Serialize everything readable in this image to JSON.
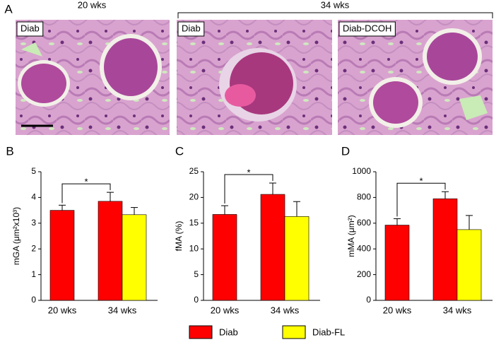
{
  "panel_a": {
    "letter": "A",
    "groups": [
      "20 wks",
      "34 wks"
    ],
    "images": [
      {
        "label": "Diab"
      },
      {
        "label": "Diab"
      },
      {
        "label": "Diab-DCOH"
      }
    ]
  },
  "legend": [
    {
      "name": "Diab",
      "color": "#ff0000"
    },
    {
      "name": "Diab-FL",
      "color": "#ffff00"
    }
  ],
  "chart_data": [
    {
      "type": "bar",
      "letter": "B",
      "y_label": "mGA (μm²x10³)",
      "categories": [
        "20 wks",
        "34 wks"
      ],
      "series": [
        {
          "color": "#ff0000",
          "values": [
            3.5,
            3.85
          ],
          "errors": [
            0.2,
            0.35
          ]
        },
        {
          "color": "#ffff00",
          "values": [
            null,
            3.33
          ],
          "errors": [
            null,
            0.28
          ]
        }
      ],
      "ylim": [
        0,
        5
      ],
      "yticks": [
        0,
        1,
        2,
        3,
        4,
        5
      ],
      "annotation": "*"
    },
    {
      "type": "bar",
      "letter": "C",
      "y_label": "fMA (%)",
      "categories": [
        "20 wks",
        "34 wks"
      ],
      "series": [
        {
          "color": "#ff0000",
          "values": [
            16.7,
            20.6
          ],
          "errors": [
            1.7,
            2.2
          ]
        },
        {
          "color": "#ffff00",
          "values": [
            null,
            16.3
          ],
          "errors": [
            null,
            2.9
          ]
        }
      ],
      "ylim": [
        0,
        25
      ],
      "yticks": [
        0,
        5,
        10,
        15,
        20,
        25
      ],
      "annotation": "*"
    },
    {
      "type": "bar",
      "letter": "D",
      "y_label": "mMA (μm²)",
      "categories": [
        "20 wks",
        "34 wks"
      ],
      "series": [
        {
          "color": "#ff0000",
          "values": [
            585,
            790
          ],
          "errors": [
            50,
            55
          ]
        },
        {
          "color": "#ffff00",
          "values": [
            null,
            550
          ],
          "errors": [
            null,
            110
          ]
        }
      ],
      "ylim": [
        0,
        1000
      ],
      "yticks": [
        0,
        200,
        400,
        600,
        800,
        1000
      ],
      "annotation": "*"
    }
  ]
}
